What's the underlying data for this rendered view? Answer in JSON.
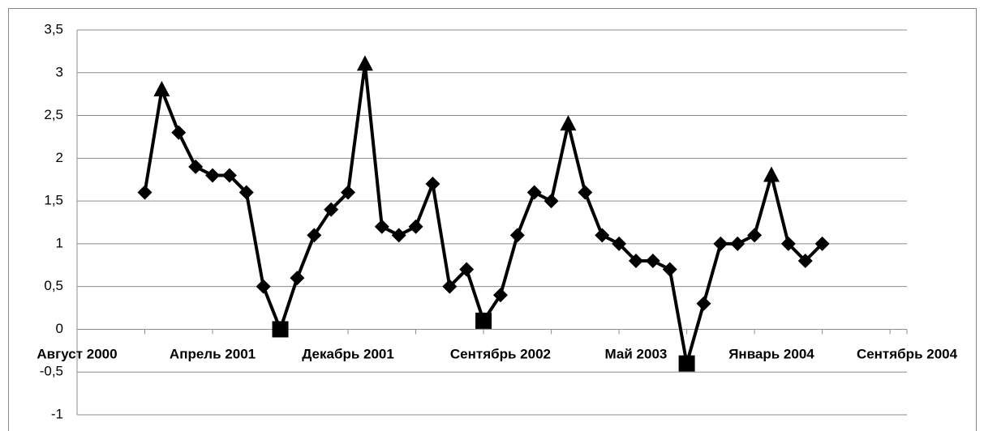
{
  "chart_data": {
    "type": "line",
    "categories": [
      "Август 2000",
      null,
      null,
      null,
      null,
      null,
      null,
      null,
      "Апрель 2001",
      null,
      null,
      null,
      null,
      null,
      null,
      null,
      "Декабрь 2001",
      null,
      null,
      null,
      null,
      null,
      null,
      null,
      null,
      "Сентябрь 2002",
      null,
      null,
      null,
      null,
      null,
      null,
      null,
      "Май 2003",
      null,
      null,
      null,
      null,
      null,
      null,
      null,
      "Январь 2004",
      null,
      null,
      null,
      null,
      null,
      null,
      null,
      "Сентябрь 2004"
    ],
    "series": [
      {
        "color": "#000000",
        "values": [
          null,
          null,
          null,
          null,
          1.6,
          2.8,
          2.3,
          1.9,
          1.8,
          1.8,
          1.6,
          0.5,
          0,
          0.6,
          1.1,
          1.4,
          1.6,
          3.1,
          1.2,
          1.1,
          1.2,
          1.7,
          0.5,
          0.7,
          0.1,
          0.4,
          1.1,
          1.6,
          1.5,
          2.4,
          1.6,
          1.1,
          1.0,
          0.8,
          0.8,
          0.7,
          -0.4,
          0.3,
          1.0,
          1.0,
          1.1,
          1.8,
          1.0,
          0.8,
          1.0,
          null,
          null,
          null,
          null,
          null
        ],
        "markers": [
          null,
          null,
          null,
          null,
          "diamond",
          "triangle",
          "diamond",
          "diamond",
          "diamond",
          "diamond",
          "diamond",
          "diamond",
          "square",
          "diamond",
          "diamond",
          "diamond",
          "diamond",
          "triangle",
          "diamond",
          "diamond",
          "diamond",
          "diamond",
          "diamond",
          "diamond",
          "square",
          "diamond",
          "diamond",
          "diamond",
          "diamond",
          "triangle",
          "diamond",
          "diamond",
          "diamond",
          "diamond",
          "diamond",
          "diamond",
          "square",
          "diamond",
          "diamond",
          "diamond",
          "diamond",
          "triangle",
          "diamond",
          "diamond",
          "diamond",
          null,
          null,
          null,
          null,
          null
        ]
      }
    ],
    "ylim": [
      -1,
      3.5
    ],
    "yticks": [
      -1,
      {
        "value": -0.5,
        "label": "-0,5"
      },
      0,
      {
        "value": 0.5,
        "label": "0,5"
      },
      1,
      {
        "value": 1.5,
        "label": "1,5"
      },
      2,
      {
        "value": 2.5,
        "label": "2,5"
      },
      3,
      {
        "value": 3.5,
        "label": "3,5"
      }
    ],
    "grid": true
  }
}
